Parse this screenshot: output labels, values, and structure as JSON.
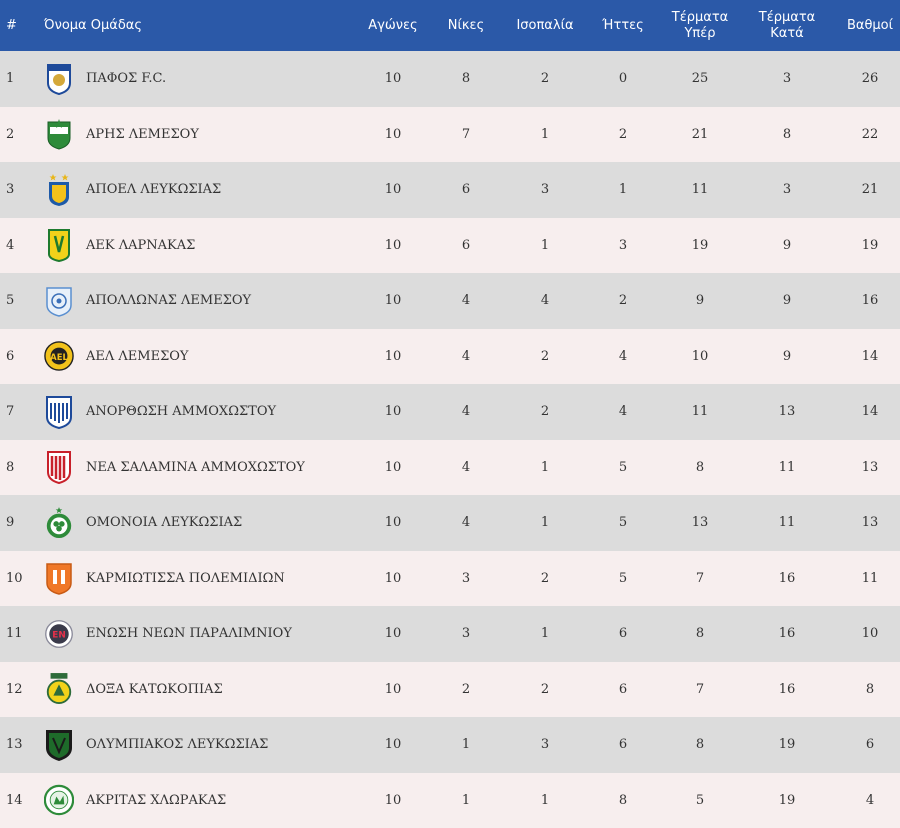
{
  "header": {
    "rank": "#",
    "team": "Όνομα Ομάδας",
    "games": "Αγώνες",
    "wins": "Νίκες",
    "draws": "Ισοπαλία",
    "losses": "Ήττες",
    "goals_for_1": "Τέρματα",
    "goals_for_2": "Υπέρ",
    "goals_against_1": "Τέρματα",
    "goals_against_2": "Κατά",
    "points": "Βαθμοί"
  },
  "rows": [
    {
      "rank": "1",
      "team": "ΠΑΦΟΣ F.C.",
      "games": "10",
      "wins": "8",
      "draws": "2",
      "losses": "0",
      "gf": "25",
      "ga": "3",
      "pts": "26",
      "logo": "pafos-logo"
    },
    {
      "rank": "2",
      "team": "ΑΡΗΣ ΛΕΜΕΣΟΥ",
      "games": "10",
      "wins": "7",
      "draws": "1",
      "losses": "2",
      "gf": "21",
      "ga": "8",
      "pts": "22",
      "logo": "aris-logo"
    },
    {
      "rank": "3",
      "team": "ΑΠΟΕΛ ΛΕΥΚΩΣΙΑΣ",
      "games": "10",
      "wins": "6",
      "draws": "3",
      "losses": "1",
      "gf": "11",
      "ga": "3",
      "pts": "21",
      "logo": "apoel-logo"
    },
    {
      "rank": "4",
      "team": "ΑΕΚ ΛΑΡΝΑΚΑΣ",
      "games": "10",
      "wins": "6",
      "draws": "1",
      "losses": "3",
      "gf": "19",
      "ga": "9",
      "pts": "19",
      "logo": "aek-logo"
    },
    {
      "rank": "5",
      "team": "ΑΠΟΛΛΩΝΑΣ ΛΕΜΕΣΟΥ",
      "games": "10",
      "wins": "4",
      "draws": "4",
      "losses": "2",
      "gf": "9",
      "ga": "9",
      "pts": "16",
      "logo": "apollon-logo"
    },
    {
      "rank": "6",
      "team": "ΑΕΛ ΛΕΜΕΣΟΥ",
      "games": "10",
      "wins": "4",
      "draws": "2",
      "losses": "4",
      "gf": "10",
      "ga": "9",
      "pts": "14",
      "logo": "ael-logo"
    },
    {
      "rank": "7",
      "team": "ΑΝΟΡΘΩΣΗ ΑΜΜΟΧΩΣΤΟΥ",
      "games": "10",
      "wins": "4",
      "draws": "2",
      "losses": "4",
      "gf": "11",
      "ga": "13",
      "pts": "14",
      "logo": "anorthosis-logo"
    },
    {
      "rank": "8",
      "team": "ΝΕΑ ΣΑΛΑΜΙΝΑ ΑΜΜΟΧΩΣΤΟΥ",
      "games": "10",
      "wins": "4",
      "draws": "1",
      "losses": "5",
      "gf": "8",
      "ga": "11",
      "pts": "13",
      "logo": "nea-salamina-logo"
    },
    {
      "rank": "9",
      "team": "ΟΜΟΝΟΙΑ ΛΕΥΚΩΣΙΑΣ",
      "games": "10",
      "wins": "4",
      "draws": "1",
      "losses": "5",
      "gf": "13",
      "ga": "11",
      "pts": "13",
      "logo": "omonoia-logo"
    },
    {
      "rank": "10",
      "team": "ΚΑΡΜΙΩΤΙΣΣΑ ΠΟΛΕΜΙΔΙΩΝ",
      "games": "10",
      "wins": "3",
      "draws": "2",
      "losses": "5",
      "gf": "7",
      "ga": "16",
      "pts": "11",
      "logo": "karmiotissa-logo"
    },
    {
      "rank": "11",
      "team": "ΕΝΩΣΗ ΝΕΩΝ ΠΑΡΑΛΙΜΝΙΟΥ",
      "games": "10",
      "wins": "3",
      "draws": "1",
      "losses": "6",
      "gf": "8",
      "ga": "16",
      "pts": "10",
      "logo": "enp-logo"
    },
    {
      "rank": "12",
      "team": "ΔΟΞΑ ΚΑΤΩΚΟΠΙΑΣ",
      "games": "10",
      "wins": "2",
      "draws": "2",
      "losses": "6",
      "gf": "7",
      "ga": "16",
      "pts": "8",
      "logo": "doxa-logo"
    },
    {
      "rank": "13",
      "team": "ΟΛΥΜΠΙΑΚΟΣ ΛΕΥΚΩΣΙΑΣ",
      "games": "10",
      "wins": "1",
      "draws": "3",
      "losses": "6",
      "gf": "8",
      "ga": "19",
      "pts": "6",
      "logo": "olympiakos-logo"
    },
    {
      "rank": "14",
      "team": "ΑΚΡΙΤΑΣ ΧΛΩΡΑΚΑΣ",
      "games": "10",
      "wins": "1",
      "draws": "1",
      "losses": "8",
      "gf": "5",
      "ga": "19",
      "pts": "4",
      "logo": "akritas-logo"
    }
  ],
  "colors": {
    "header_bg": "#2b59a8",
    "row_odd": "#dcdcdc",
    "row_even": "#f7eeee"
  }
}
